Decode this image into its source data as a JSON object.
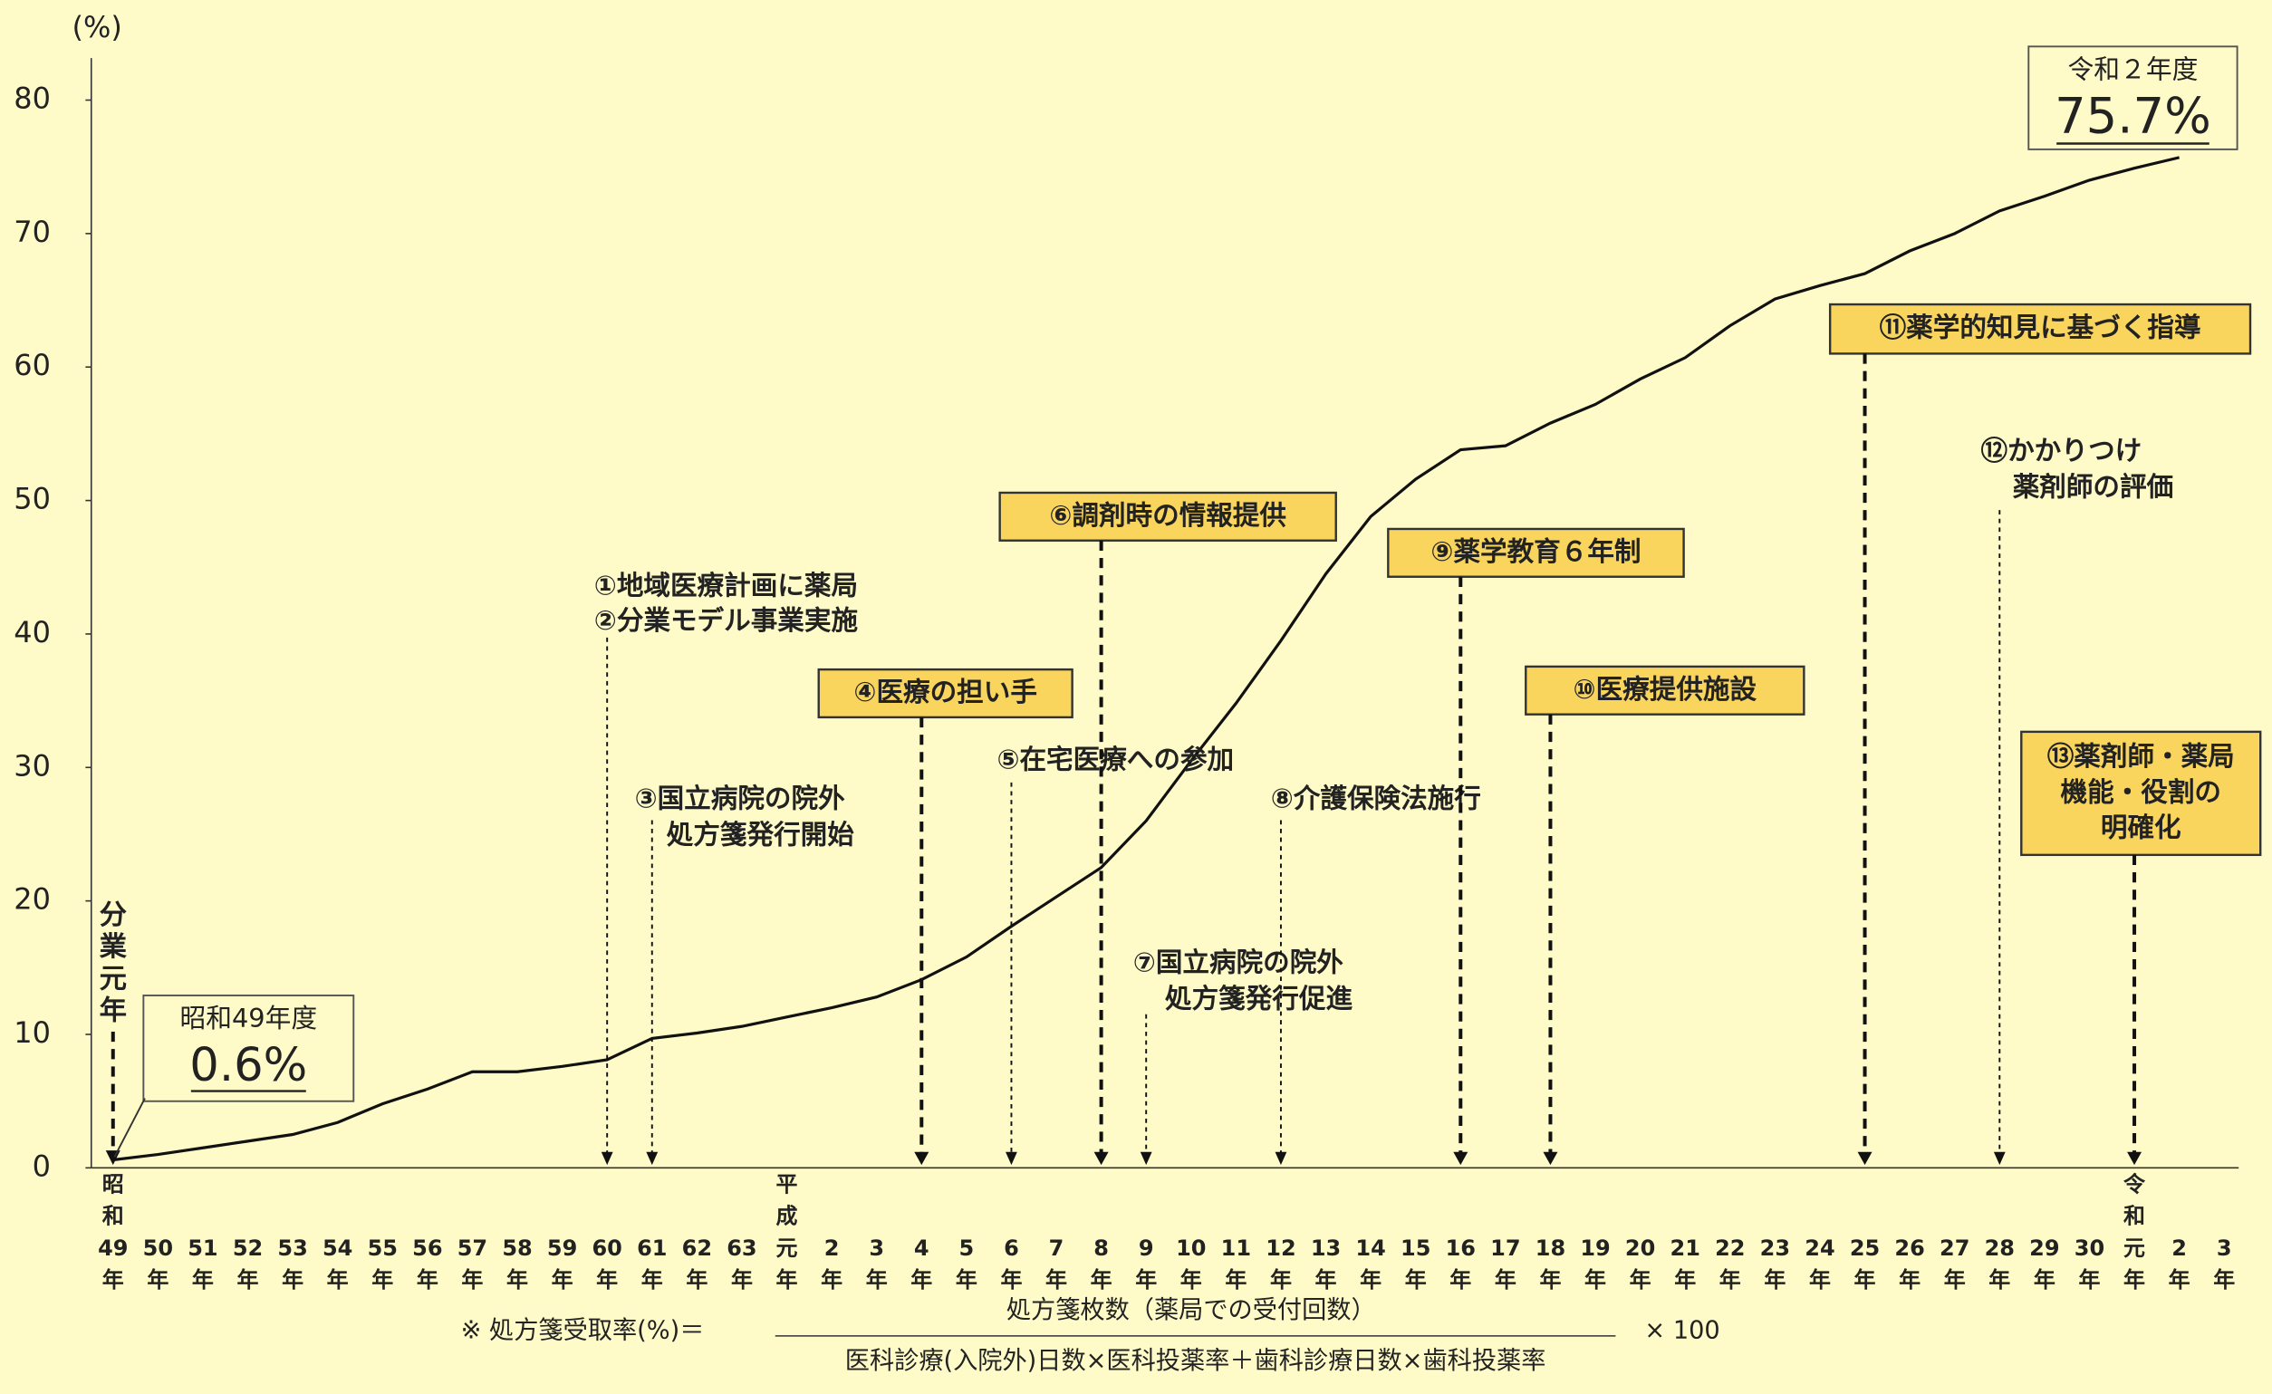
{
  "chart_data": {
    "type": "line",
    "y_label": "(%)",
    "categories": [
      "昭和49年",
      "50年",
      "51年",
      "52年",
      "53年",
      "54年",
      "55年",
      "56年",
      "57年",
      "58年",
      "59年",
      "60年",
      "61年",
      "62年",
      "63年",
      "平成元年",
      "2年",
      "3年",
      "4年",
      "5年",
      "6年",
      "7年",
      "8年",
      "9年",
      "10年",
      "11年",
      "12年",
      "13年",
      "14年",
      "15年",
      "16年",
      "17年",
      "18年",
      "19年",
      "20年",
      "21年",
      "22年",
      "23年",
      "24年",
      "25年",
      "26年",
      "27年",
      "28年",
      "29年",
      "30年",
      "令和元年",
      "2年",
      "3年"
    ],
    "values": [
      0.6,
      1.0,
      1.5,
      2.0,
      2.5,
      3.4,
      4.8,
      5.9,
      7.2,
      7.2,
      7.6,
      8.1,
      9.7,
      10.1,
      10.6,
      11.3,
      12.0,
      12.8,
      14.1,
      15.8,
      18.1,
      20.3,
      22.5,
      26.0,
      30.5,
      34.8,
      39.5,
      44.5,
      48.8,
      51.6,
      53.8,
      54.1,
      55.8,
      57.2,
      59.1,
      60.7,
      63.1,
      65.1,
      66.1,
      67.0,
      68.7,
      70.0,
      71.7,
      72.8,
      74.0,
      74.9,
      75.7,
      null
    ],
    "value_labels": [
      "0.6%",
      null,
      null,
      null,
      null,
      null,
      null,
      null,
      null,
      null,
      null,
      null,
      null,
      null,
      null,
      null,
      null,
      null,
      null,
      null,
      null,
      null,
      null,
      null,
      null,
      null,
      null,
      null,
      null,
      null,
      null,
      null,
      null,
      null,
      null,
      null,
      null,
      null,
      null,
      null,
      null,
      null,
      null,
      null,
      null,
      null,
      "75.7%",
      null
    ],
    "color": "#111111",
    "ylim": [
      0,
      83
    ],
    "yticks": [
      0,
      10,
      20,
      30,
      40,
      50,
      60,
      70,
      80
    ],
    "start_label": "分業元年",
    "callouts": [
      {
        "title": "昭和49年度"
      },
      {
        "title": "令和２年度"
      }
    ],
    "annotations": [
      {
        "lines": [
          "①地域医療計画に薬局"
        ],
        "boxed": false
      },
      {
        "lines": [
          "②分業モデル事業実施"
        ],
        "boxed": false
      },
      {
        "lines": [
          "③国立病院の院外",
          "処方箋発行開始"
        ],
        "boxed": false
      },
      {
        "lines": [
          "④医療の担い手"
        ],
        "boxed": true
      },
      {
        "lines": [
          "⑤在宅医療への参加"
        ],
        "boxed": false
      },
      {
        "lines": [
          "⑥調剤時の情報提供"
        ],
        "boxed": true
      },
      {
        "lines": [
          "⑦国立病院の院外",
          "処方箋発行促進"
        ],
        "boxed": false
      },
      {
        "lines": [
          "⑧介護保険法施行"
        ],
        "boxed": false
      },
      {
        "lines": [
          "⑨薬学教育６年制"
        ],
        "boxed": true
      },
      {
        "lines": [
          "⑩医療提供施設"
        ],
        "boxed": true
      },
      {
        "lines": [
          "⑪薬学的知見に基づく指導"
        ],
        "boxed": true
      },
      {
        "lines": [
          "⑫かかりつけ",
          "薬剤師の評価"
        ],
        "boxed": false
      },
      {
        "lines": [
          "⑬薬剤師・薬局",
          "機能・役割の",
          "明確化"
        ],
        "boxed": true
      }
    ],
    "footnote": {
      "lead": "※ 処方箋受取率(%)＝",
      "numerator": "処方箋枚数（薬局での受付回数）",
      "denominator": "医科診療(入院外)日数×医科投薬率＋歯科診療日数×歯科投薬率",
      "multiplier": "× 100"
    }
  }
}
